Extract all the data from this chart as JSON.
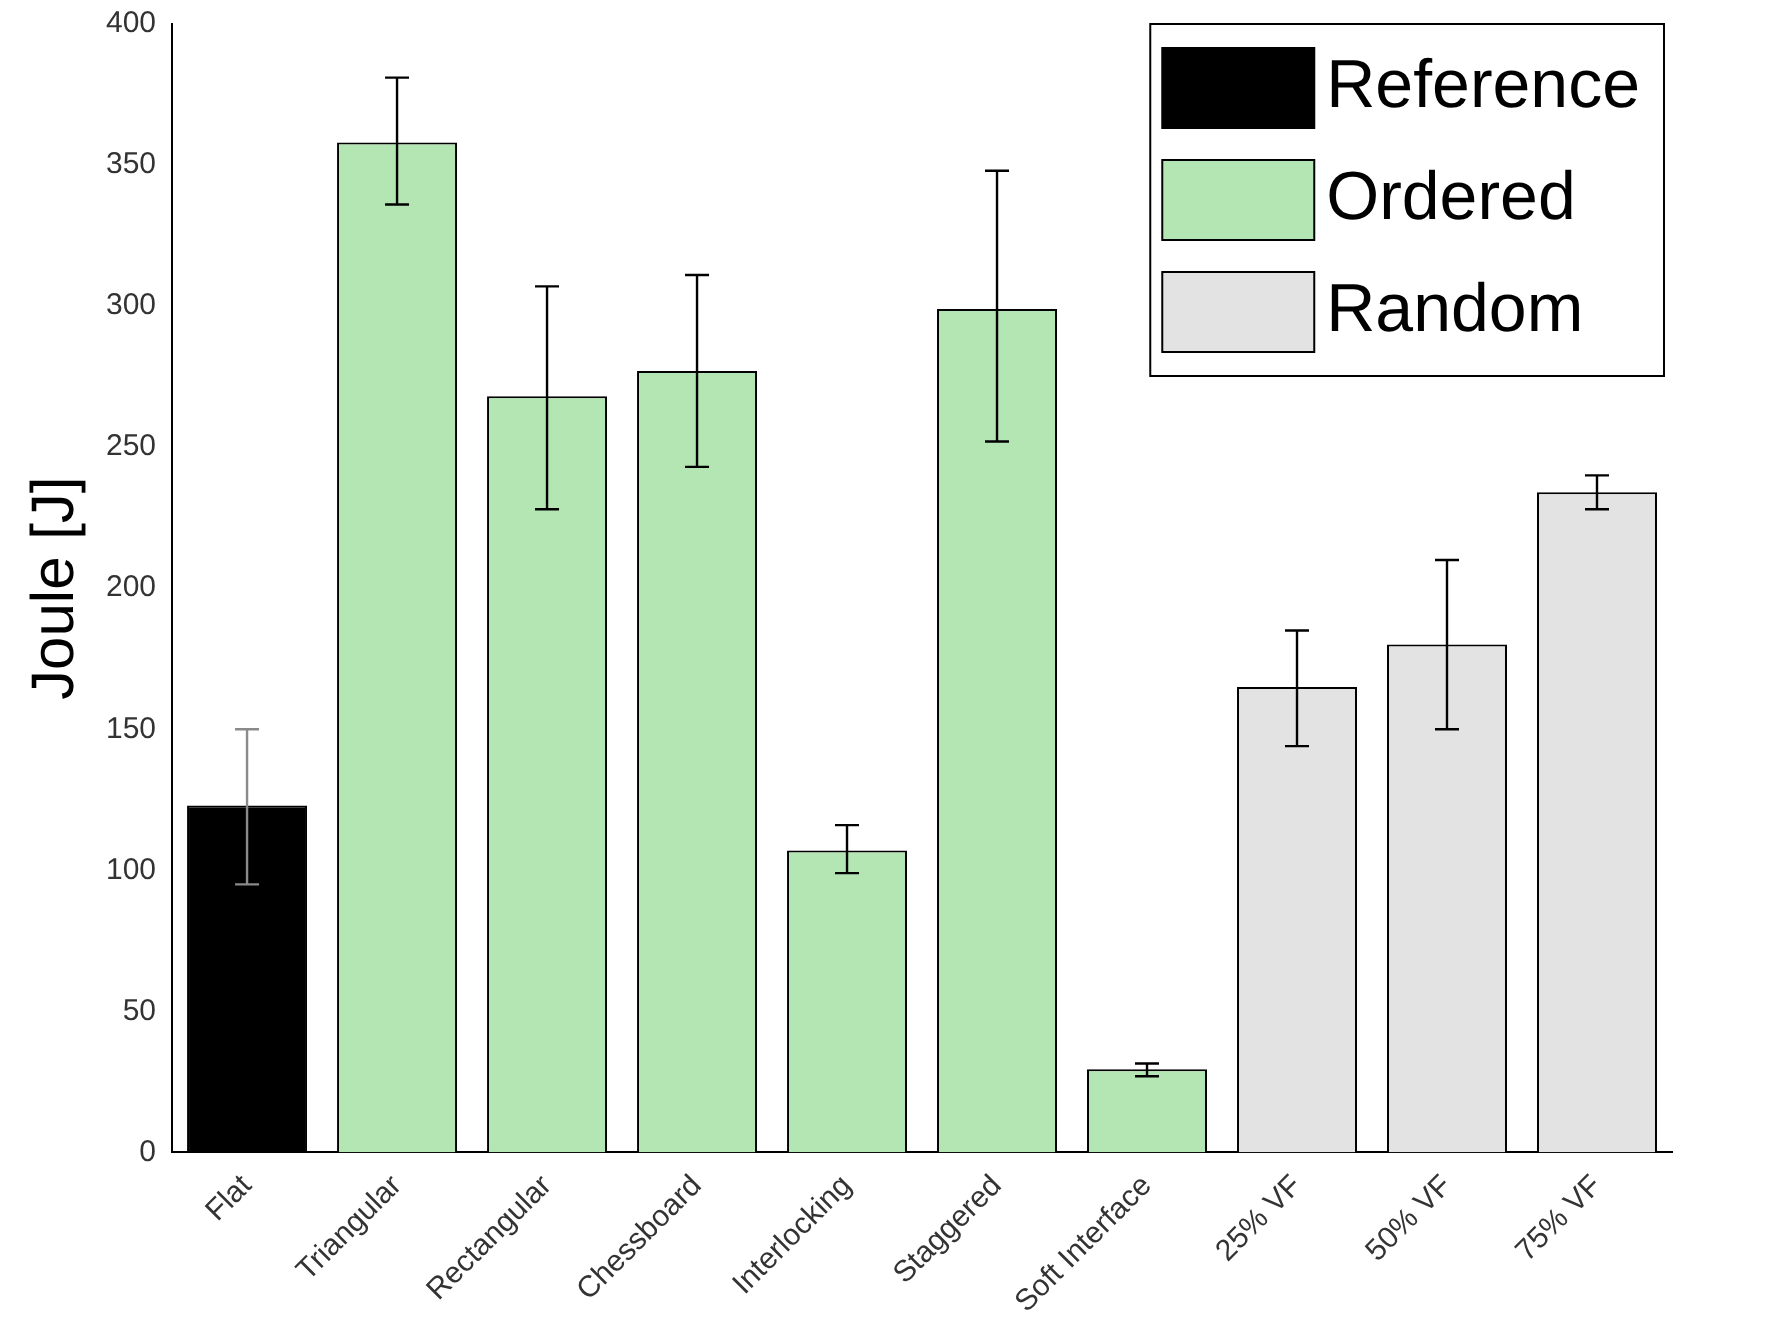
{
  "chart_data": {
    "type": "bar",
    "ylabel": "Joule [J]",
    "categories": [
      "Flat",
      "Triangular",
      "Rectangular",
      "Chessboard",
      "Interlocking",
      "Staggered",
      "Soft Interface",
      "25% VF",
      "50% VF",
      "75% VF"
    ],
    "series": [
      {
        "name": "Reference",
        "color": "#000000",
        "values": [
          123,
          null,
          null,
          null,
          null,
          null,
          null,
          null,
          null,
          null
        ],
        "errors": [
          [
            95,
            150
          ],
          null,
          null,
          null,
          null,
          null,
          null,
          null,
          null,
          null
        ]
      },
      {
        "name": "Ordered",
        "color": "#b3e6b3",
        "values": [
          null,
          358,
          268,
          277,
          107,
          299,
          29.5,
          null,
          null,
          null
        ],
        "errors": [
          null,
          [
            336,
            381
          ],
          [
            228,
            307
          ],
          [
            243,
            311
          ],
          [
            99,
            116
          ],
          [
            252,
            348
          ],
          [
            27,
            31.5
          ],
          null,
          null,
          null
        ]
      },
      {
        "name": "Random",
        "color": "#e3e3e3",
        "values": [
          null,
          null,
          null,
          null,
          null,
          null,
          null,
          165,
          180,
          234
        ],
        "errors": [
          null,
          null,
          null,
          null,
          null,
          null,
          null,
          [
            144,
            185
          ],
          [
            150,
            210
          ],
          [
            228,
            240
          ]
        ]
      }
    ],
    "ylim": [
      0,
      400
    ],
    "yticks": [
      0,
      50,
      100,
      150,
      200,
      250,
      300,
      350,
      400
    ],
    "grid": false,
    "legend": "top right"
  }
}
